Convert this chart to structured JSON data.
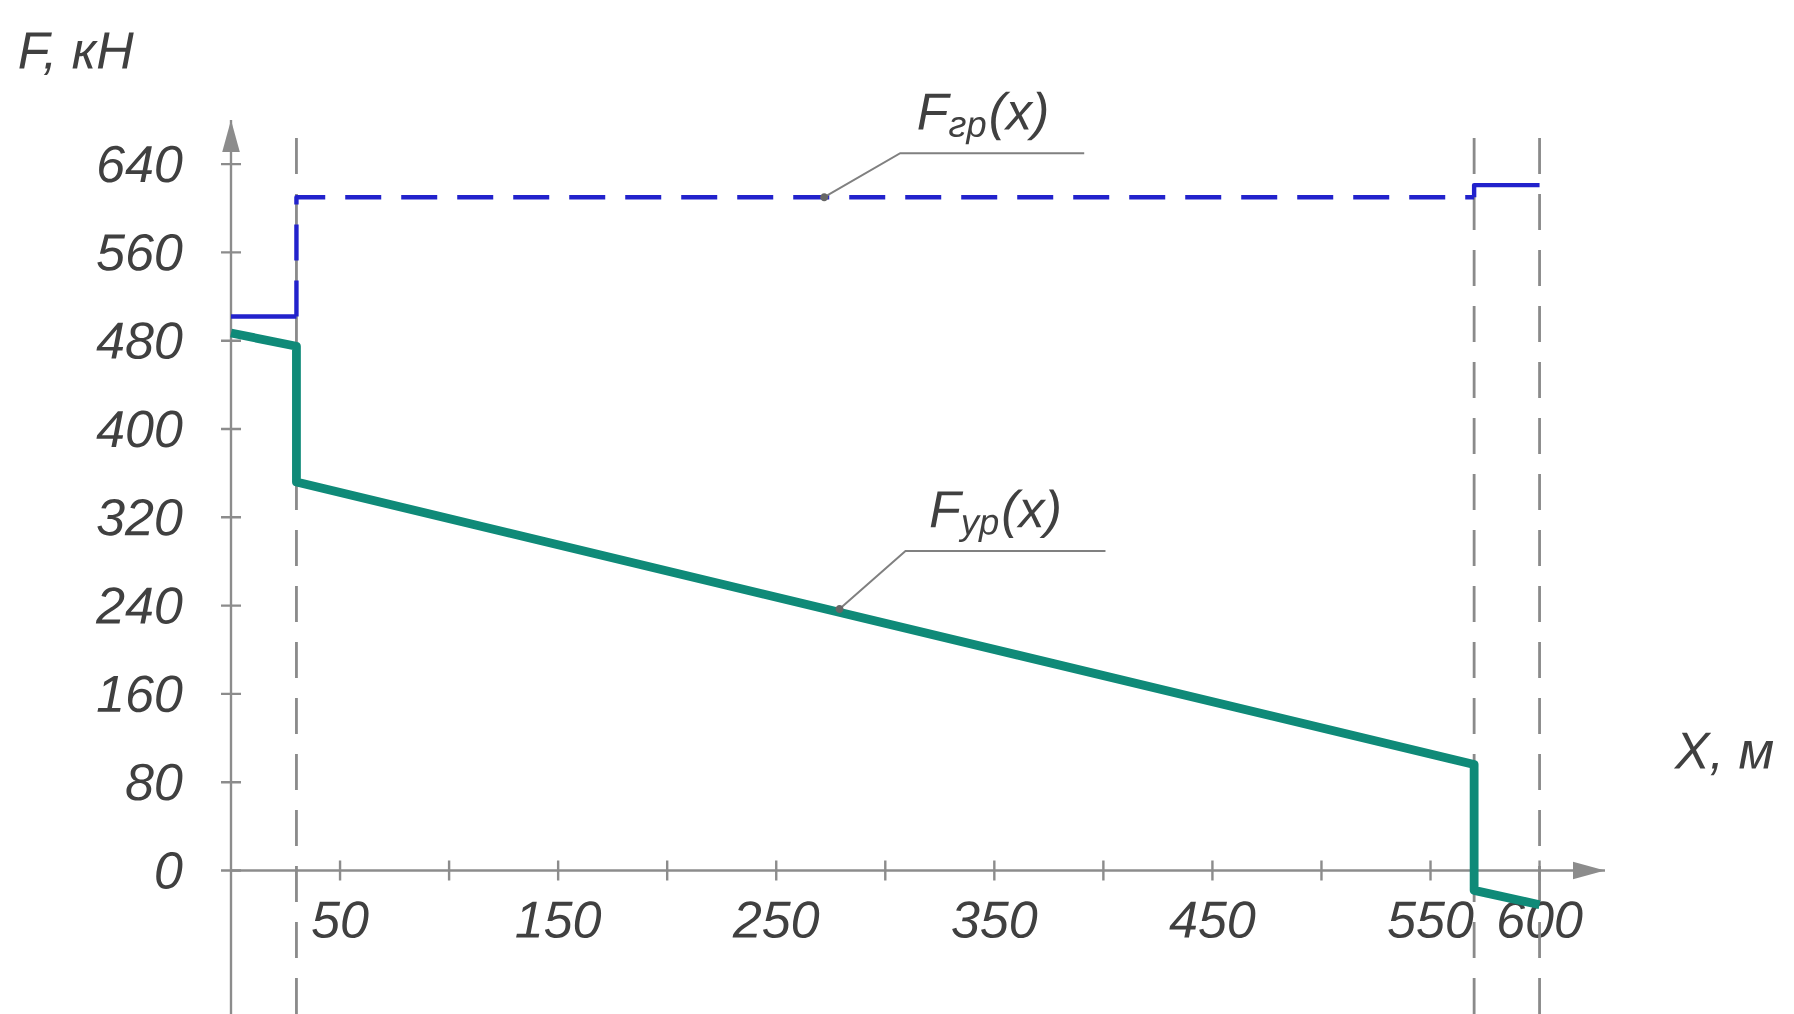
{
  "chart_data": {
    "type": "line",
    "xlabel": "X, м",
    "ylabel": "F, кН",
    "xlim": [
      0,
      630
    ],
    "ylim": [
      -130,
      680
    ],
    "xticks": [
      50,
      {
        "value": 100,
        "label": null
      },
      150,
      {
        "value": 200,
        "label": null
      },
      250,
      {
        "value": 300,
        "label": null
      },
      350,
      {
        "value": 400,
        "label": null
      },
      450,
      {
        "value": 500,
        "label": null
      },
      550,
      600
    ],
    "yticks": [
      0,
      80,
      160,
      240,
      320,
      400,
      480,
      560,
      640
    ],
    "grid": false,
    "series": [
      {
        "color": "#2222cc",
        "line_style": "solid",
        "x": [
          0,
          30
        ],
        "values": [
          502,
          502
        ]
      },
      {
        "color": "#2222cc",
        "line_style": "dashed",
        "x": [
          30,
          30,
          570
        ],
        "values": [
          502,
          610,
          610
        ]
      },
      {
        "color": "#2222cc",
        "line_style": "solid",
        "x": [
          570,
          570,
          600
        ],
        "values": [
          610,
          621,
          621
        ]
      },
      {
        "color": "#0f8a78",
        "line_style": "solid",
        "x": [
          0,
          30,
          30,
          570,
          570,
          600
        ],
        "values": [
          487,
          475,
          352,
          96,
          -18,
          -31
        ]
      }
    ],
    "ref_lines": [
      {
        "axis": "x",
        "value": 30,
        "color": "#8a8a8a",
        "line_style": "dashed"
      },
      {
        "axis": "x",
        "value": 570,
        "color": "#8a8a8a",
        "line_style": "dashed"
      },
      {
        "axis": "x",
        "value": 600,
        "color": "#8a8a8a",
        "line_style": "dashed"
      }
    ],
    "annotations": [
      {
        "text": "F$_{гр}$(x)",
        "x": 272,
        "y": 610
      },
      {
        "text": "F$_{ур}$(x)",
        "x": 279,
        "y": 237
      }
    ]
  }
}
